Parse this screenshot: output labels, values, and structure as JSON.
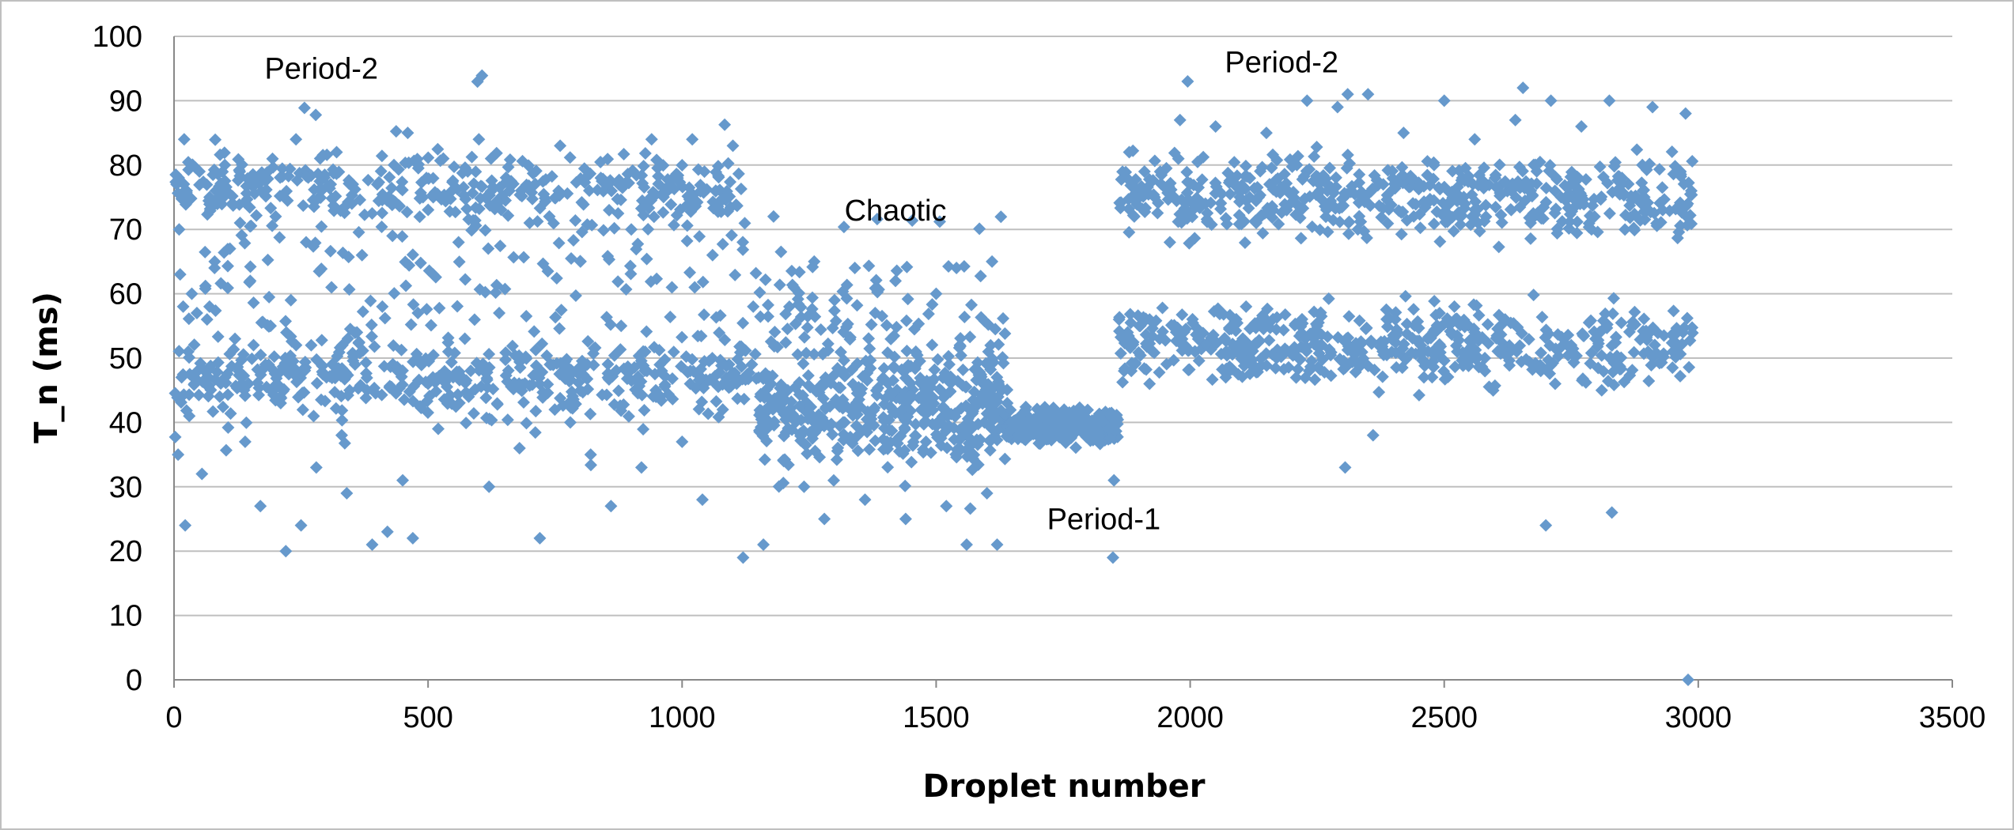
{
  "chart_data": {
    "type": "scatter",
    "xlabel": "Droplet number",
    "ylabel": "T_n (ms)",
    "xlim": [
      0,
      3500
    ],
    "ylim": [
      0,
      100
    ],
    "x_ticks": [
      0,
      500,
      1000,
      1500,
      2000,
      2500,
      3000,
      3500
    ],
    "y_ticks": [
      0,
      10,
      20,
      30,
      40,
      50,
      60,
      70,
      80,
      90,
      100
    ],
    "grid": "horizontal",
    "legend": "none",
    "marker": "diamond",
    "series_color": "#6699CC",
    "annotations": [
      {
        "text": "Period-2",
        "x": 290,
        "y": 95
      },
      {
        "text": "Chaotic",
        "x": 1420,
        "y": 73
      },
      {
        "text": "Period-1",
        "x": 1830,
        "y": 25
      },
      {
        "text": "Period-2",
        "x": 2180,
        "y": 96
      }
    ],
    "points": [
      [
        5,
        77
      ],
      [
        8,
        35
      ],
      [
        10,
        70
      ],
      [
        12,
        63
      ],
      [
        15,
        47
      ],
      [
        18,
        58
      ],
      [
        20,
        84
      ],
      [
        22,
        24
      ],
      [
        25,
        76
      ],
      [
        28,
        51
      ],
      [
        30,
        41
      ],
      [
        35,
        60
      ],
      [
        40,
        46
      ],
      [
        45,
        57
      ],
      [
        50,
        79
      ],
      [
        55,
        32
      ],
      [
        60,
        48
      ],
      [
        65,
        56
      ],
      [
        70,
        75
      ],
      [
        80,
        65
      ],
      [
        90,
        44
      ],
      [
        100,
        80
      ],
      [
        110,
        67
      ],
      [
        120,
        53
      ],
      [
        130,
        71
      ],
      [
        140,
        37
      ],
      [
        150,
        62
      ],
      [
        160,
        77
      ],
      [
        170,
        27
      ],
      [
        180,
        49
      ],
      [
        190,
        55
      ],
      [
        200,
        72
      ],
      [
        210,
        43
      ],
      [
        220,
        20
      ],
      [
        230,
        59
      ],
      [
        240,
        84
      ],
      [
        250,
        24
      ],
      [
        260,
        68
      ],
      [
        270,
        52
      ],
      [
        280,
        33
      ],
      [
        290,
        76
      ],
      [
        300,
        47
      ],
      [
        310,
        61
      ],
      [
        320,
        82
      ],
      [
        330,
        38
      ],
      [
        340,
        29
      ],
      [
        350,
        74
      ],
      [
        360,
        54
      ],
      [
        370,
        66
      ],
      [
        380,
        45
      ],
      [
        390,
        21
      ],
      [
        400,
        77
      ],
      [
        410,
        58
      ],
      [
        420,
        23
      ],
      [
        430,
        69
      ],
      [
        440,
        48
      ],
      [
        450,
        31
      ],
      [
        460,
        85
      ],
      [
        470,
        22
      ],
      [
        480,
        57
      ],
      [
        490,
        75
      ],
      [
        500,
        46
      ],
      [
        510,
        63
      ],
      [
        520,
        39
      ],
      [
        530,
        81
      ],
      [
        540,
        51
      ],
      [
        560,
        68
      ],
      [
        580,
        44
      ],
      [
        600,
        84
      ],
      [
        620,
        30
      ],
      [
        640,
        57
      ],
      [
        660,
        76
      ],
      [
        680,
        36
      ],
      [
        700,
        71
      ],
      [
        720,
        22
      ],
      [
        740,
        49
      ],
      [
        760,
        83
      ],
      [
        780,
        40
      ],
      [
        800,
        65
      ],
      [
        820,
        35
      ],
      [
        840,
        78
      ],
      [
        860,
        27
      ],
      [
        880,
        55
      ],
      [
        900,
        70
      ],
      [
        920,
        33
      ],
      [
        940,
        84
      ],
      [
        960,
        48
      ],
      [
        980,
        61
      ],
      [
        1000,
        37
      ],
      [
        1020,
        84
      ],
      [
        1040,
        28
      ],
      [
        1060,
        66
      ],
      [
        1080,
        42
      ],
      [
        1100,
        83
      ],
      [
        1120,
        19
      ],
      [
        1140,
        58
      ],
      [
        1160,
        21
      ],
      [
        1180,
        72
      ],
      [
        1200,
        34
      ],
      [
        1220,
        61
      ],
      [
        1240,
        30
      ],
      [
        1260,
        65
      ],
      [
        1280,
        25
      ],
      [
        1300,
        59
      ],
      [
        1320,
        40
      ],
      [
        1340,
        64
      ],
      [
        1360,
        28
      ],
      [
        1380,
        57
      ],
      [
        1400,
        36
      ],
      [
        1420,
        62
      ],
      [
        1440,
        25
      ],
      [
        1460,
        51
      ],
      [
        1480,
        37
      ],
      [
        1500,
        60
      ],
      [
        1520,
        27
      ],
      [
        1540,
        64
      ],
      [
        1560,
        21
      ],
      [
        1580,
        48
      ],
      [
        1600,
        29
      ],
      [
        1610,
        65
      ],
      [
        1620,
        21
      ],
      [
        1640,
        43
      ],
      [
        1660,
        40
      ],
      [
        1680,
        39
      ],
      [
        1700,
        41
      ],
      [
        1720,
        38
      ],
      [
        1740,
        40
      ],
      [
        1760,
        39
      ],
      [
        1780,
        41
      ],
      [
        1800,
        38
      ],
      [
        1820,
        40
      ],
      [
        1840,
        39
      ],
      [
        1848,
        19
      ],
      [
        1850,
        31
      ],
      [
        1860,
        56
      ],
      [
        1870,
        48
      ],
      [
        1880,
        82
      ],
      [
        1890,
        72
      ],
      [
        1900,
        55
      ],
      [
        1910,
        79
      ],
      [
        1920,
        46
      ],
      [
        1930,
        75
      ],
      [
        1940,
        53
      ],
      [
        1960,
        68
      ],
      [
        1980,
        87
      ],
      [
        1995,
        93
      ],
      [
        2010,
        51
      ],
      [
        2030,
        74
      ],
      [
        2050,
        86
      ],
      [
        2070,
        47
      ],
      [
        2090,
        77
      ],
      [
        2110,
        58
      ],
      [
        2130,
        71
      ],
      [
        2150,
        85
      ],
      [
        2170,
        50
      ],
      [
        2190,
        73
      ],
      [
        2210,
        80
      ],
      [
        2230,
        90
      ],
      [
        2250,
        55
      ],
      [
        2270,
        76
      ],
      [
        2290,
        89
      ],
      [
        2305,
        33
      ],
      [
        2310,
        91
      ],
      [
        2330,
        70
      ],
      [
        2350,
        91
      ],
      [
        2360,
        38
      ],
      [
        2380,
        77
      ],
      [
        2400,
        53
      ],
      [
        2420,
        85
      ],
      [
        2440,
        72
      ],
      [
        2460,
        47
      ],
      [
        2480,
        80
      ],
      [
        2500,
        90
      ],
      [
        2520,
        58
      ],
      [
        2540,
        74
      ],
      [
        2560,
        84
      ],
      [
        2580,
        50
      ],
      [
        2600,
        78
      ],
      [
        2620,
        56
      ],
      [
        2640,
        87
      ],
      [
        2655,
        92
      ],
      [
        2670,
        71
      ],
      [
        2690,
        48
      ],
      [
        2700,
        24
      ],
      [
        2710,
        90
      ],
      [
        2730,
        75
      ],
      [
        2750,
        52
      ],
      [
        2770,
        86
      ],
      [
        2790,
        70
      ],
      [
        2810,
        45
      ],
      [
        2825,
        90
      ],
      [
        2830,
        26
      ],
      [
        2850,
        78
      ],
      [
        2870,
        55
      ],
      [
        2890,
        80
      ],
      [
        2910,
        89
      ],
      [
        2930,
        73
      ],
      [
        2950,
        51
      ],
      [
        2965,
        79
      ],
      [
        2970,
        54
      ],
      [
        2975,
        88
      ],
      [
        2980,
        0
      ]
    ],
    "clusters": [
      {
        "x_range": [
          0,
          1150
        ],
        "y_center": 47,
        "y_spread": 2.5,
        "count": 380
      },
      {
        "x_range": [
          0,
          1120
        ],
        "y_center": 76,
        "y_spread": 2.5,
        "count": 330
      },
      {
        "x_range": [
          0,
          1150
        ],
        "y_center": 60,
        "y_spread": 13,
        "count": 260
      },
      {
        "x_range": [
          1150,
          1640
        ],
        "y_center": 42,
        "y_spread": 4,
        "count": 340
      },
      {
        "x_range": [
          1150,
          1640
        ],
        "y_center": 50,
        "y_spread": 9,
        "count": 200
      },
      {
        "x_range": [
          1640,
          1860
        ],
        "y_center": 39.5,
        "y_spread": 1.3,
        "count": 260
      },
      {
        "x_range": [
          1860,
          2990
        ],
        "y_center": 75,
        "y_spread": 3,
        "count": 520
      },
      {
        "x_range": [
          1860,
          2990
        ],
        "y_center": 52,
        "y_spread": 3,
        "count": 520
      }
    ]
  }
}
